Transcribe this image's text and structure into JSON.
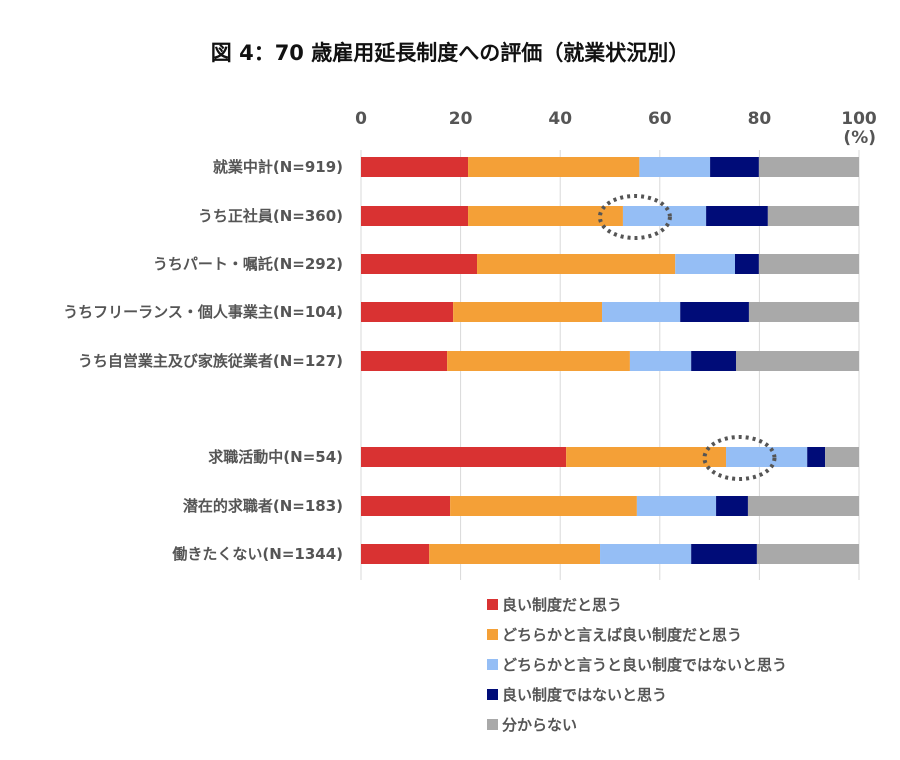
{
  "chart_data": {
    "type": "bar",
    "orientation": "horizontal",
    "stacked": true,
    "title": "図 4：70 歳雇用延長制度への評価（就業状況別）",
    "xlabel": "",
    "ylabel": "",
    "unit_label": "(%)",
    "xlim": [
      0,
      100
    ],
    "xticks": [
      0,
      20,
      40,
      60,
      80,
      100
    ],
    "grid": true,
    "legend_position": "bottom",
    "categories": [
      "就業中計(N=919)",
      "うち正社員(N=360)",
      "うちパート・嘱託(N=292)",
      "うちフリーランス・個人事業主(N=104)",
      "うち自営業主及び家族従業者(N=127)",
      "求職活動中(N=54)",
      "潜在的求職者(N=183)",
      "働きたくない(N=1344)"
    ],
    "series": [
      {
        "name": "良い制度だと思う",
        "color": "#d93232",
        "values": [
          21.5,
          21.5,
          23.3,
          18.5,
          17.3,
          41.2,
          17.9,
          13.7
        ]
      },
      {
        "name": "どちらかと言えば良い制度だと思う",
        "color": "#f4a037",
        "values": [
          34.4,
          31.1,
          39.8,
          29.9,
          36.7,
          32.1,
          37.5,
          34.3
        ]
      },
      {
        "name": "どちらかと言うと良い制度ではないと思う",
        "color": "#95bef5",
        "values": [
          14.2,
          16.7,
          12.0,
          15.7,
          12.3,
          16.3,
          15.9,
          18.3
        ]
      },
      {
        "name": "良い制度ではないと思う",
        "color": "#000c78",
        "values": [
          9.8,
          12.4,
          4.8,
          13.8,
          9.0,
          3.6,
          6.4,
          13.2
        ]
      },
      {
        "name": "分からない",
        "color": "#a9a9a9",
        "values": [
          20.1,
          18.3,
          20.1,
          22.1,
          24.7,
          6.8,
          22.3,
          20.5
        ]
      }
    ],
    "annotations": [
      {
        "type": "dotted-ellipse",
        "category": "うち正社員(N=360)",
        "around_value": 55
      },
      {
        "type": "dotted-ellipse",
        "category": "求職活動中(N=54)",
        "around_value": 76
      }
    ]
  }
}
